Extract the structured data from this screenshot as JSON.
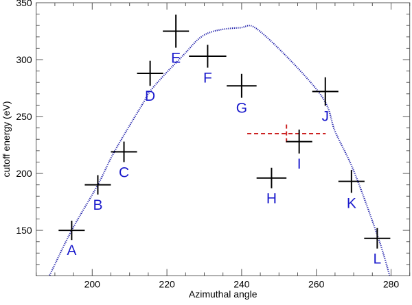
{
  "chart_data": {
    "type": "scatter",
    "title": "",
    "xlabel": "Azimuthal angle",
    "ylabel": "cutoff energy (eV)",
    "xlim": [
      185,
      285
    ],
    "ylim": [
      110,
      350
    ],
    "x_ticks": [
      200,
      220,
      240,
      260,
      280
    ],
    "y_ticks": [
      150,
      200,
      250,
      300,
      350
    ],
    "x_minor_step": 5,
    "y_minor_step": 10,
    "grid": false,
    "colors": {
      "points": "#000000",
      "labels": "#1a1acc",
      "fit_curve": "#1a1aa8",
      "highlight": "#cc2222"
    },
    "points": [
      {
        "label": "A",
        "x": 194.5,
        "y": 150,
        "xerr": 3.5,
        "yerr": 8.5
      },
      {
        "label": "B",
        "x": 201.5,
        "y": 190,
        "xerr": 3.5,
        "yerr": 8.5
      },
      {
        "label": "C",
        "x": 208.5,
        "y": 219,
        "xerr": 3.5,
        "yerr": 9
      },
      {
        "label": "D",
        "x": 215.5,
        "y": 288,
        "xerr": 3.5,
        "yerr": 11
      },
      {
        "label": "E",
        "x": 222.4,
        "y": 325,
        "xerr": 3.5,
        "yerr": 14.5
      },
      {
        "label": "F",
        "x": 230.9,
        "y": 303,
        "xerr": 5,
        "yerr": 10
      },
      {
        "label": "G",
        "x": 240,
        "y": 277,
        "xerr": 4,
        "yerr": 10.5
      },
      {
        "label": "H",
        "x": 248,
        "y": 196,
        "xerr": 4,
        "yerr": 9
      },
      {
        "label": "I",
        "x": 255.4,
        "y": 228,
        "xerr": 3.5,
        "yerr": 10.5
      },
      {
        "label": "J",
        "x": 262.4,
        "y": 272,
        "xerr": 3.5,
        "yerr": 12.5
      },
      {
        "label": "K",
        "x": 269.4,
        "y": 193,
        "xerr": 3.5,
        "yerr": 10
      },
      {
        "label": "L",
        "x": 276.3,
        "y": 143,
        "xerr": 3.5,
        "yerr": 9
      }
    ],
    "highlight_point": {
      "x": 252,
      "y": 235,
      "xerr": 10.5,
      "yerr": 8,
      "style": "dashed"
    },
    "fit_curve": {
      "style": "dotted",
      "x": [
        188.6,
        194.5,
        201.5,
        205.9,
        213.3,
        216.3,
        224.2,
        230.4,
        239.4,
        245.1,
        260.9,
        265.1,
        270.0,
        276.5,
        279.6
      ],
      "y": [
        110.5,
        150,
        190,
        219,
        260,
        275.5,
        303.3,
        322.4,
        328,
        324.4,
        270.3,
        236.3,
        202.3,
        144.2,
        110.5
      ]
    }
  }
}
